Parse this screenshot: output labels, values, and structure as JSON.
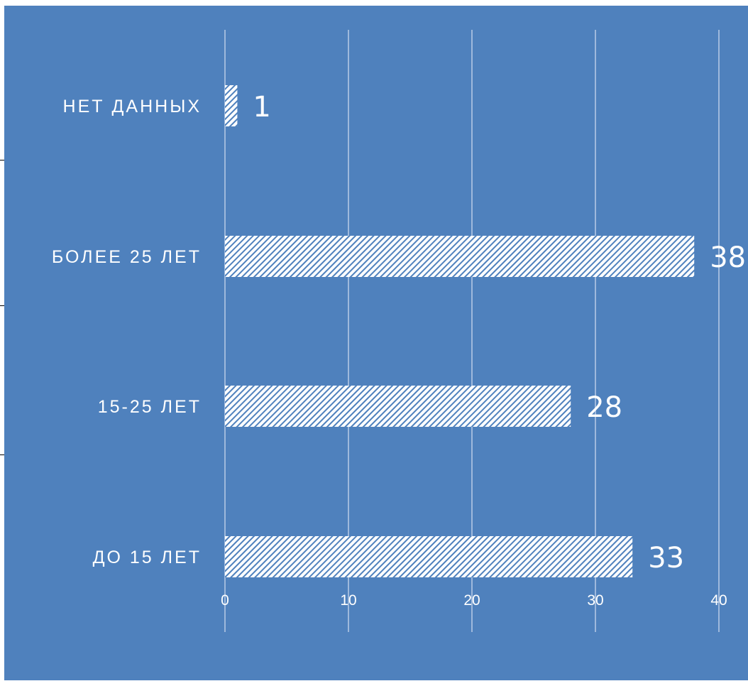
{
  "chart_data": {
    "type": "bar",
    "orientation": "horizontal",
    "categories": [
      "НЕТ ДАННЫХ",
      "БОЛЕЕ 25 ЛЕТ",
      "15-25 ЛЕТ",
      "ДО 15 ЛЕТ"
    ],
    "values": [
      1,
      38,
      28,
      33
    ],
    "data_labels": [
      "1",
      "38",
      "28",
      "33"
    ],
    "x_ticks": [
      "0",
      "10",
      "20",
      "30",
      "40"
    ],
    "xlim": [
      0,
      40
    ],
    "grid": true,
    "legend": "none",
    "title": "",
    "xlabel": "",
    "ylabel": "",
    "colors": {
      "background": "#4f81bd",
      "bar_fill": "#ffffff",
      "bar_hatch": "#4f81bd",
      "gridline": "#9fb9dc",
      "text": "#ffffff"
    }
  }
}
